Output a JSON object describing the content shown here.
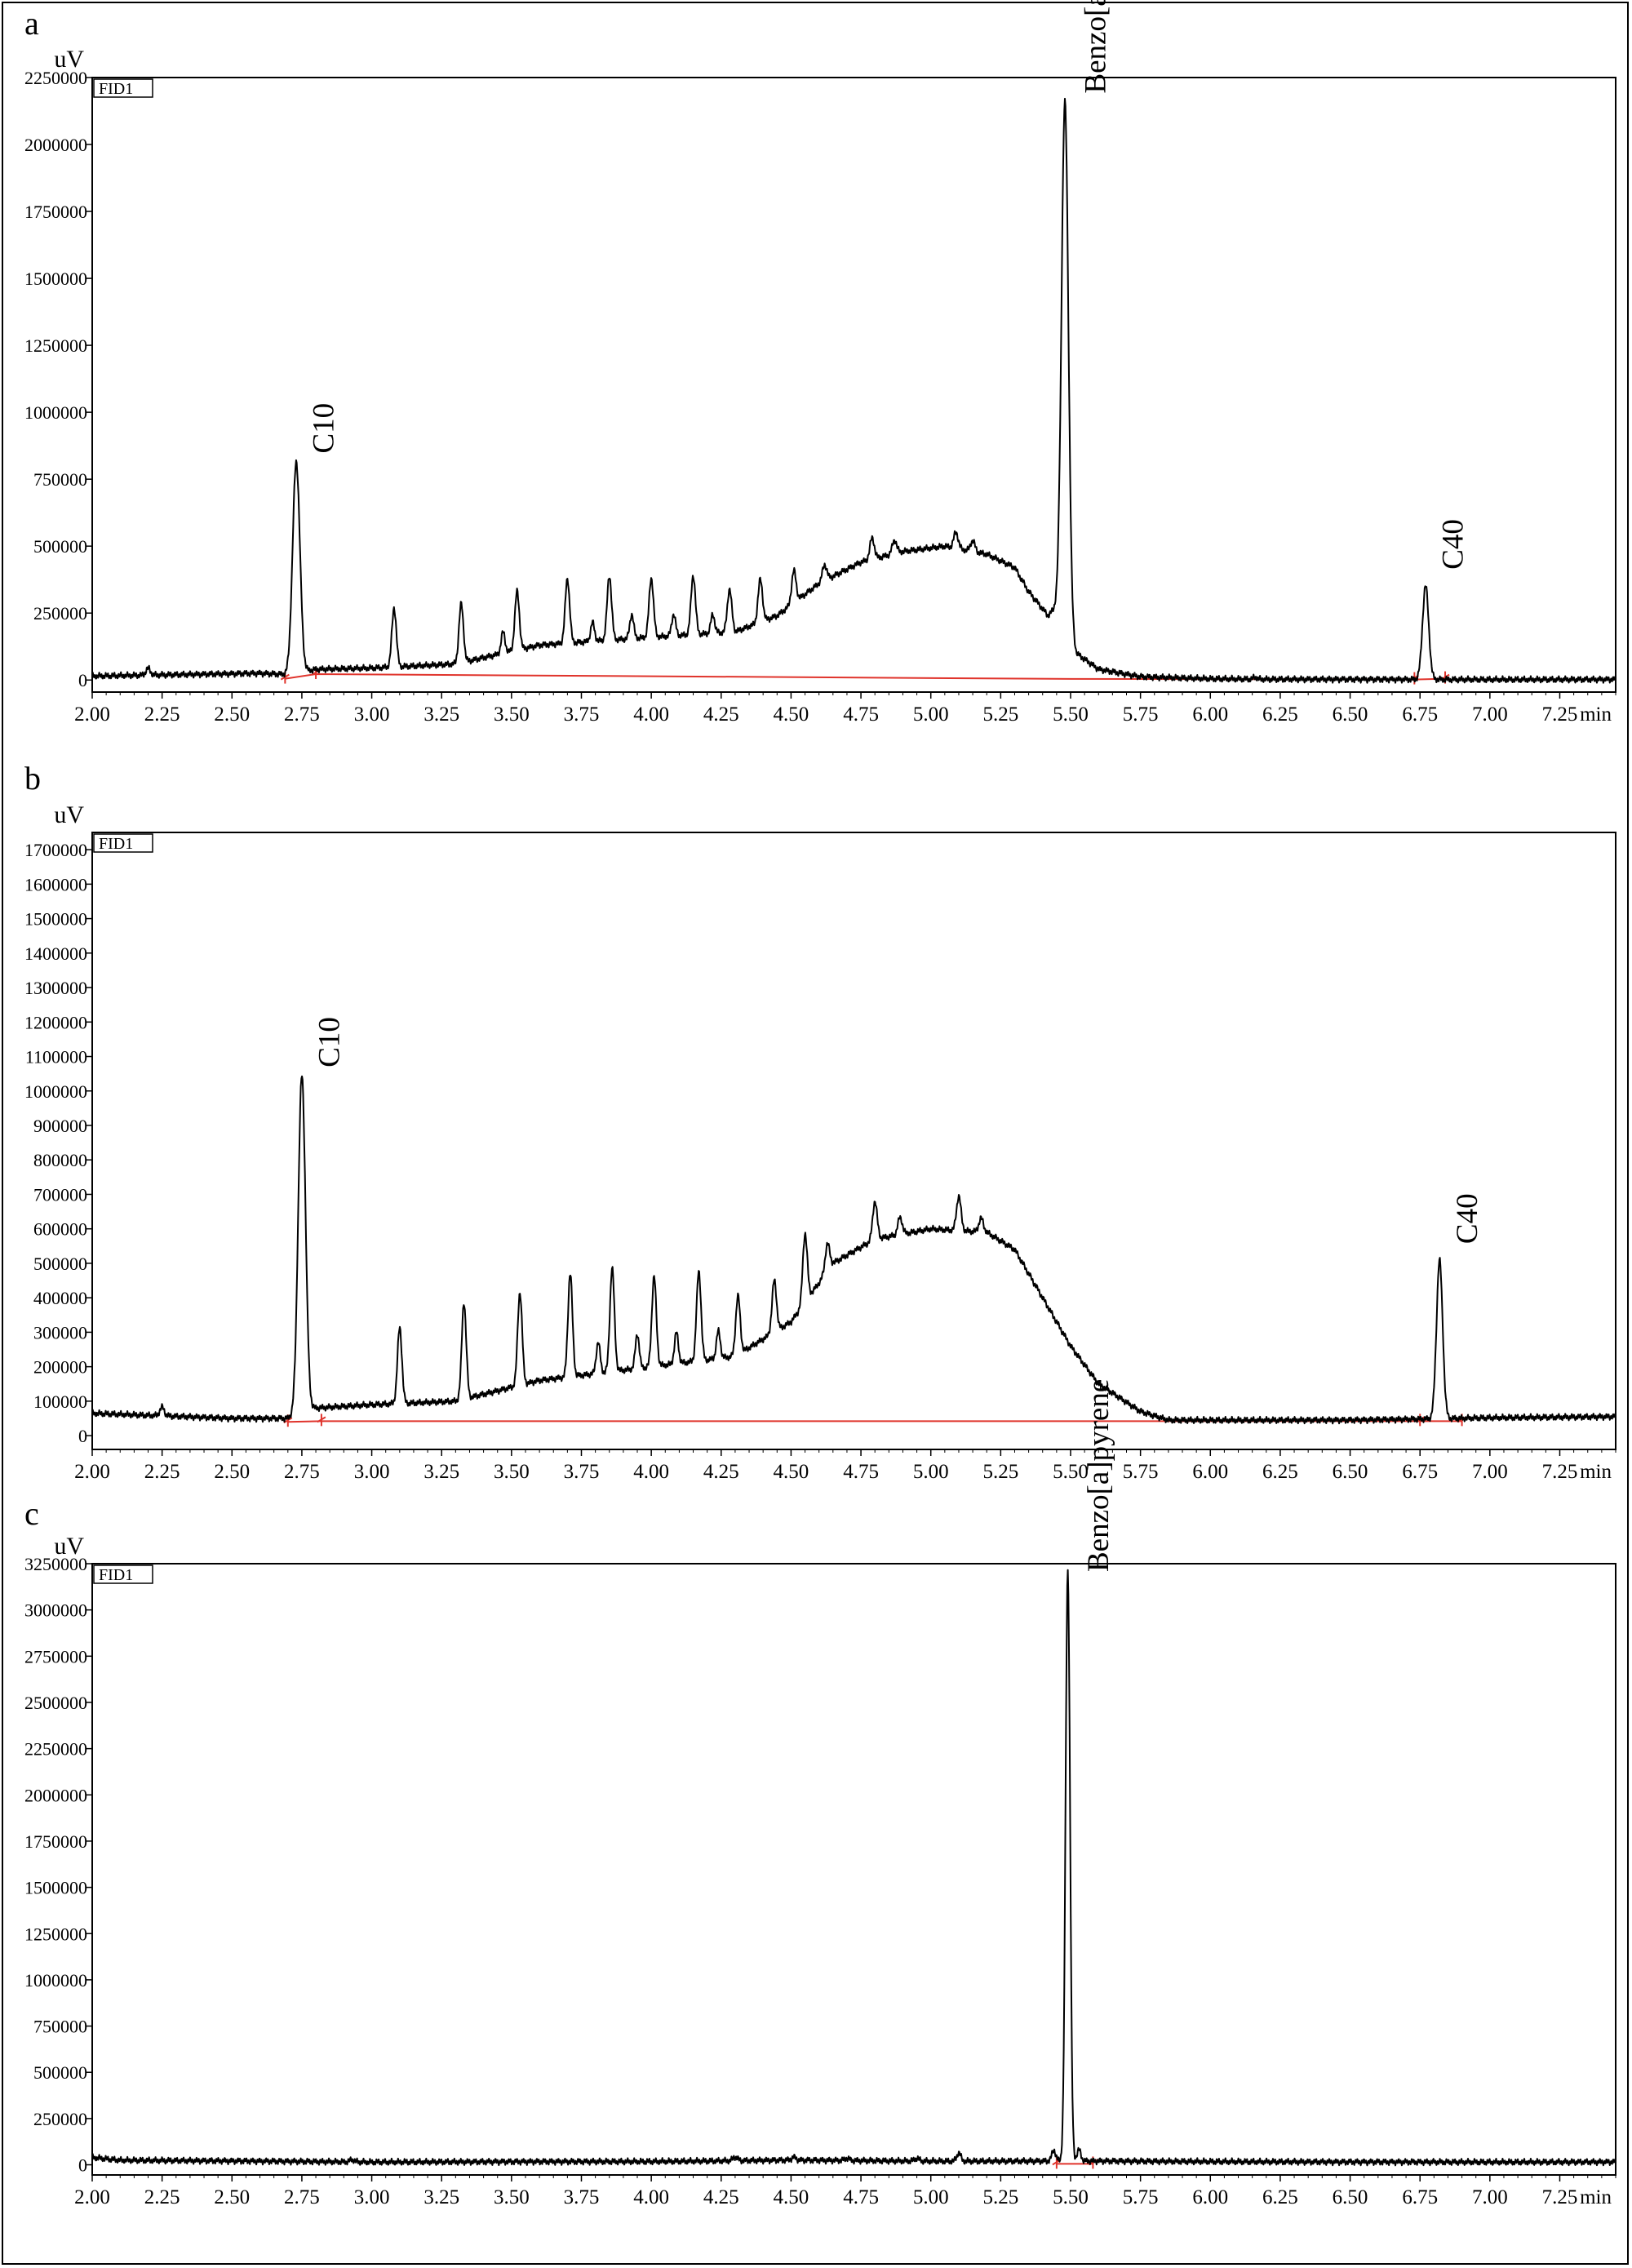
{
  "colors": {
    "trace": "#000000",
    "baseline": "#e0342c",
    "axis": "#000000"
  },
  "chart_data": [
    {
      "type": "line",
      "panel": "a",
      "legend": "FID1",
      "ylabel": "uV",
      "xlabel": "min",
      "xlim": [
        2.0,
        7.45
      ],
      "ylim": [
        -45000,
        2250000
      ],
      "yticks": [
        0,
        250000,
        500000,
        750000,
        1000000,
        1250000,
        1500000,
        1750000,
        2000000,
        2250000
      ],
      "ytick_labels": [
        "0",
        "250000",
        "500000",
        "750000",
        "1000000",
        "1250000",
        "1500000",
        "1750000",
        "2000000",
        "2250000"
      ],
      "xticks": [
        2.0,
        2.25,
        2.5,
        2.75,
        3.0,
        3.25,
        3.5,
        3.75,
        4.0,
        4.25,
        4.5,
        4.75,
        5.0,
        5.25,
        5.5,
        5.75,
        6.0,
        6.25,
        6.5,
        6.75,
        7.0,
        7.25
      ],
      "xtick_labels": [
        "2.00",
        "2.25",
        "2.50",
        "2.75",
        "3.00",
        "3.25",
        "3.50",
        "3.75",
        "4.00",
        "4.25",
        "4.50",
        "4.75",
        "5.00",
        "5.25",
        "5.50",
        "5.75",
        "6.00",
        "6.25",
        "6.50",
        "6.75",
        "7.00",
        "7.25"
      ],
      "trace": {
        "baseline_points": [
          [
            2.0,
            15000
          ],
          [
            2.6,
            25000
          ],
          [
            2.7,
            20000
          ],
          [
            2.8,
            40000
          ],
          [
            3.0,
            45000
          ],
          [
            3.3,
            60000
          ],
          [
            3.6,
            130000
          ],
          [
            4.0,
            160000
          ],
          [
            4.3,
            180000
          ],
          [
            4.45,
            240000
          ],
          [
            4.6,
            360000
          ],
          [
            4.75,
            440000
          ],
          [
            4.9,
            480000
          ],
          [
            5.05,
            500000
          ],
          [
            5.2,
            470000
          ],
          [
            5.3,
            420000
          ],
          [
            5.35,
            330000
          ],
          [
            5.42,
            240000
          ],
          [
            5.47,
            300000
          ],
          [
            5.52,
            100000
          ],
          [
            5.6,
            40000
          ],
          [
            5.75,
            12000
          ],
          [
            6.0,
            5000
          ],
          [
            6.2,
            3000
          ],
          [
            6.7,
            2000
          ],
          [
            7.45,
            2000
          ]
        ],
        "peaks": [
          [
            2.2,
            25000,
            0.008
          ],
          [
            2.73,
            790000,
            0.013
          ],
          [
            3.08,
            220000,
            0.008
          ],
          [
            3.32,
            220000,
            0.008
          ],
          [
            3.47,
            80000,
            0.007
          ],
          [
            3.52,
            220000,
            0.008
          ],
          [
            3.7,
            240000,
            0.008
          ],
          [
            3.79,
            70000,
            0.007
          ],
          [
            3.85,
            240000,
            0.008
          ],
          [
            3.93,
            90000,
            0.007
          ],
          [
            4.0,
            220000,
            0.008
          ],
          [
            4.08,
            80000,
            0.007
          ],
          [
            4.15,
            220000,
            0.008
          ],
          [
            4.22,
            70000,
            0.007
          ],
          [
            4.28,
            160000,
            0.008
          ],
          [
            4.39,
            160000,
            0.008
          ],
          [
            4.51,
            120000,
            0.008
          ],
          [
            4.62,
            60000,
            0.008
          ],
          [
            4.79,
            80000,
            0.008
          ],
          [
            4.87,
            50000,
            0.008
          ],
          [
            5.09,
            60000,
            0.008
          ],
          [
            5.15,
            40000,
            0.008
          ],
          [
            5.48,
            1900000,
            0.012
          ],
          [
            6.16,
            8000,
            0.006
          ],
          [
            6.77,
            350000,
            0.011
          ]
        ]
      },
      "integration_baseline": [
        [
          2.69,
          5000
        ],
        [
          2.8,
          22000
        ],
        [
          4.0,
          14000
        ],
        [
          5.5,
          4000
        ],
        [
          6.73,
          2000
        ],
        [
          6.84,
          5000
        ]
      ],
      "integration_markers": [
        2.69,
        2.8,
        6.73,
        6.84
      ],
      "peak_labels": [
        {
          "text": "C10",
          "x": 2.73
        },
        {
          "text": "Benzo[a]pyrene",
          "x": 5.48
        },
        {
          "text": "C40",
          "x": 6.77
        }
      ]
    },
    {
      "type": "line",
      "panel": "b",
      "legend": "FID1",
      "ylabel": "uV",
      "xlabel": "min",
      "xlim": [
        2.0,
        7.45
      ],
      "ylim": [
        -40000,
        1750000
      ],
      "yticks": [
        0,
        100000,
        200000,
        300000,
        400000,
        500000,
        600000,
        700000,
        800000,
        900000,
        1000000,
        1100000,
        1200000,
        1300000,
        1400000,
        1500000,
        1600000,
        1700000
      ],
      "ytick_labels": [
        "0",
        "100000",
        "200000",
        "300000",
        "400000",
        "500000",
        "600000",
        "700000",
        "800000",
        "900000",
        "1000000",
        "1100000",
        "1200000",
        "1300000",
        "1400000",
        "1500000",
        "1600000",
        "1700000"
      ],
      "xticks": [
        2.0,
        2.25,
        2.5,
        2.75,
        3.0,
        3.25,
        3.5,
        3.75,
        4.0,
        4.25,
        4.5,
        4.75,
        5.0,
        5.25,
        5.5,
        5.75,
        6.0,
        6.25,
        6.5,
        6.75,
        7.0,
        7.25
      ],
      "xtick_labels": [
        "2.00",
        "2.25",
        "2.50",
        "2.75",
        "3.00",
        "3.25",
        "3.50",
        "3.75",
        "4.00",
        "4.25",
        "4.50",
        "4.75",
        "5.00",
        "5.25",
        "5.50",
        "5.75",
        "6.00",
        "6.25",
        "6.50",
        "6.75",
        "7.00",
        "7.25"
      ],
      "trace": {
        "baseline_points": [
          [
            2.0,
            65000
          ],
          [
            2.5,
            50000
          ],
          [
            2.7,
            50000
          ],
          [
            2.8,
            80000
          ],
          [
            3.0,
            90000
          ],
          [
            3.3,
            100000
          ],
          [
            3.6,
            160000
          ],
          [
            4.0,
            200000
          ],
          [
            4.3,
            230000
          ],
          [
            4.5,
            330000
          ],
          [
            4.65,
            500000
          ],
          [
            4.8,
            570000
          ],
          [
            5.0,
            600000
          ],
          [
            5.2,
            590000
          ],
          [
            5.3,
            540000
          ],
          [
            5.4,
            400000
          ],
          [
            5.5,
            260000
          ],
          [
            5.6,
            150000
          ],
          [
            5.75,
            70000
          ],
          [
            5.85,
            45000
          ],
          [
            6.5,
            45000
          ],
          [
            6.75,
            48000
          ],
          [
            7.0,
            52000
          ],
          [
            7.45,
            55000
          ]
        ],
        "peaks": [
          [
            2.25,
            25000,
            0.008
          ],
          [
            2.75,
            980000,
            0.013
          ],
          [
            3.1,
            220000,
            0.008
          ],
          [
            3.33,
            280000,
            0.008
          ],
          [
            3.53,
            270000,
            0.008
          ],
          [
            3.71,
            300000,
            0.008
          ],
          [
            3.81,
            90000,
            0.007
          ],
          [
            3.86,
            300000,
            0.008
          ],
          [
            3.95,
            100000,
            0.007
          ],
          [
            4.01,
            260000,
            0.008
          ],
          [
            4.09,
            90000,
            0.007
          ],
          [
            4.17,
            260000,
            0.008
          ],
          [
            4.24,
            80000,
            0.007
          ],
          [
            4.31,
            170000,
            0.008
          ],
          [
            4.44,
            150000,
            0.008
          ],
          [
            4.55,
            200000,
            0.008
          ],
          [
            4.63,
            80000,
            0.008
          ],
          [
            4.8,
            110000,
            0.008
          ],
          [
            4.89,
            50000,
            0.008
          ],
          [
            5.1,
            100000,
            0.008
          ],
          [
            5.18,
            40000,
            0.008
          ],
          [
            6.82,
            460000,
            0.011
          ]
        ]
      },
      "integration_baseline": [
        [
          2.7,
          40000
        ],
        [
          2.82,
          42000
        ],
        [
          6.75,
          42000
        ],
        [
          6.9,
          42000
        ]
      ],
      "integration_markers": [
        2.7,
        2.82,
        6.75,
        6.9
      ],
      "peak_labels": [
        {
          "text": "C10",
          "x": 2.75
        },
        {
          "text": "C40",
          "x": 6.82
        }
      ]
    },
    {
      "type": "line",
      "panel": "c",
      "legend": "FID1",
      "ylabel": "uV",
      "xlabel": "min",
      "xlim": [
        2.0,
        7.45
      ],
      "ylim": [
        -55000,
        3250000
      ],
      "yticks": [
        0,
        250000,
        500000,
        750000,
        1000000,
        1250000,
        1500000,
        1750000,
        2000000,
        2250000,
        2500000,
        2750000,
        3000000,
        3250000
      ],
      "ytick_labels": [
        "0",
        "250000",
        "500000",
        "750000",
        "1000000",
        "1250000",
        "1500000",
        "1750000",
        "2000000",
        "2250000",
        "2500000",
        "2750000",
        "3000000",
        "3250000"
      ],
      "xticks": [
        2.0,
        2.25,
        2.5,
        2.75,
        3.0,
        3.25,
        3.5,
        3.75,
        4.0,
        4.25,
        4.5,
        4.75,
        5.0,
        5.25,
        5.5,
        5.75,
        6.0,
        6.25,
        6.5,
        6.75,
        7.0,
        7.25
      ],
      "xtick_labels": [
        "2.00",
        "2.25",
        "2.50",
        "2.75",
        "3.00",
        "3.25",
        "3.50",
        "3.75",
        "4.00",
        "4.25",
        "4.50",
        "4.75",
        "5.00",
        "5.25",
        "5.50",
        "5.75",
        "6.00",
        "6.25",
        "6.50",
        "6.75",
        "7.00",
        "7.25"
      ],
      "trace": {
        "baseline_points": [
          [
            2.0,
            40000
          ],
          [
            2.1,
            25000
          ],
          [
            3.0,
            15000
          ],
          [
            4.0,
            18000
          ],
          [
            4.5,
            25000
          ],
          [
            5.0,
            20000
          ],
          [
            5.4,
            20000
          ],
          [
            5.6,
            20000
          ],
          [
            6.5,
            15000
          ],
          [
            7.45,
            15000
          ]
        ],
        "peaks": [
          [
            2.93,
            12000,
            0.008
          ],
          [
            4.3,
            20000,
            0.008
          ],
          [
            4.51,
            15000,
            0.008
          ],
          [
            4.7,
            12000,
            0.008
          ],
          [
            4.95,
            15000,
            0.008
          ],
          [
            5.1,
            45000,
            0.007
          ],
          [
            5.44,
            60000,
            0.007
          ],
          [
            5.49,
            3200000,
            0.008
          ],
          [
            5.53,
            60000,
            0.007
          ]
        ]
      },
      "integration_baseline": [
        [
          5.45,
          5000
        ],
        [
          5.58,
          5000
        ]
      ],
      "integration_markers": [
        5.45,
        5.58
      ],
      "peak_labels": [
        {
          "text": "Benzo[a]pyrene",
          "x": 5.49
        }
      ]
    }
  ]
}
